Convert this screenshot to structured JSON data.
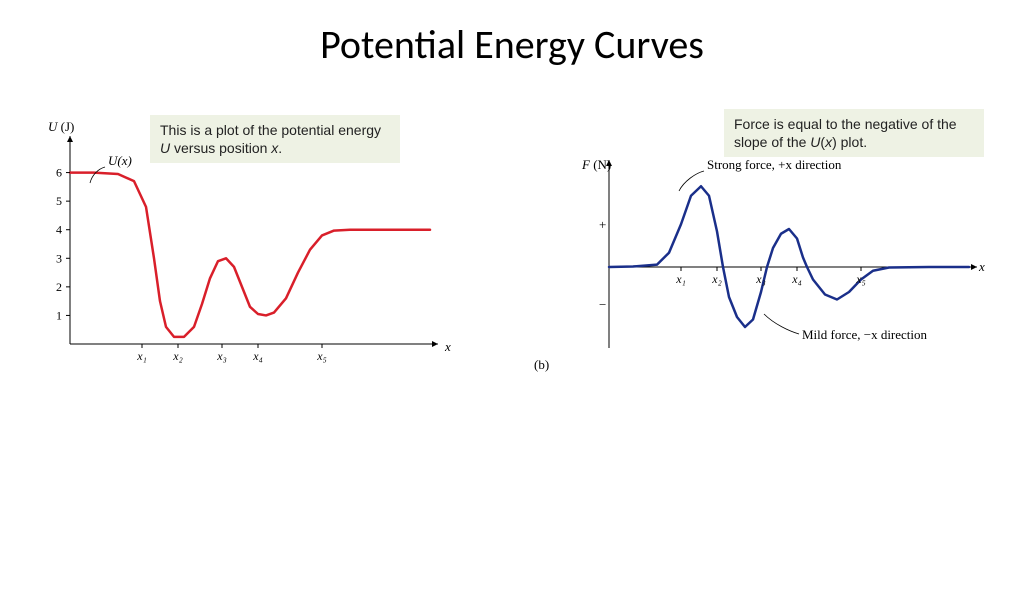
{
  "title": "Potential Energy Curves",
  "left": {
    "caption": "This is a plot of the potential energy U versus position x.",
    "y_label": "U (J)",
    "x_label": "x",
    "curve_label": "U(x)",
    "y_ticks": [
      1,
      2,
      3,
      4,
      5,
      6
    ],
    "x_tick_labels": [
      "x₁",
      "x₂",
      "x₃",
      "x₄",
      "x₅"
    ],
    "ylim": [
      0,
      7
    ],
    "xlim": [
      0,
      9
    ],
    "curve_color": "#d91f2a",
    "curve_width": 2.5,
    "axis_color": "#000000",
    "curve_points": [
      [
        0.0,
        6.0
      ],
      [
        0.6,
        6.0
      ],
      [
        1.2,
        5.95
      ],
      [
        1.6,
        5.7
      ],
      [
        1.9,
        4.8
      ],
      [
        2.1,
        3.0
      ],
      [
        2.25,
        1.5
      ],
      [
        2.4,
        0.6
      ],
      [
        2.6,
        0.25
      ],
      [
        2.85,
        0.25
      ],
      [
        3.1,
        0.6
      ],
      [
        3.3,
        1.4
      ],
      [
        3.5,
        2.3
      ],
      [
        3.7,
        2.9
      ],
      [
        3.9,
        3.0
      ],
      [
        4.1,
        2.7
      ],
      [
        4.3,
        2.0
      ],
      [
        4.5,
        1.3
      ],
      [
        4.7,
        1.05
      ],
      [
        4.9,
        1.0
      ],
      [
        5.1,
        1.1
      ],
      [
        5.4,
        1.6
      ],
      [
        5.7,
        2.5
      ],
      [
        6.0,
        3.3
      ],
      [
        6.3,
        3.8
      ],
      [
        6.6,
        3.97
      ],
      [
        7.0,
        4.0
      ],
      [
        8.0,
        4.0
      ],
      [
        9.0,
        4.0
      ]
    ],
    "x_tick_positions": [
      1.8,
      2.7,
      3.8,
      4.7,
      6.3
    ]
  },
  "right": {
    "caption": "Force is equal to the negative of the slope of the U(x) plot.",
    "y_label": "F (N)",
    "x_label": "x",
    "annot_top": "Strong force, +x direction",
    "annot_bottom": "Mild force, −x direction",
    "panel_label": "(b)",
    "ylim": [
      -3,
      4
    ],
    "xlim": [
      0,
      9
    ],
    "y_plus": "+",
    "y_minus": "−",
    "curve_color": "#1a2f8a",
    "curve_width": 2.5,
    "axis_color": "#000000",
    "x_tick_labels": [
      "x₁",
      "x₂",
      "x₃",
      "x₄",
      "x₅"
    ],
    "x_tick_positions": [
      1.8,
      2.7,
      3.8,
      4.7,
      6.3
    ],
    "curve_points": [
      [
        0.0,
        0.0
      ],
      [
        0.6,
        0.02
      ],
      [
        1.2,
        0.1
      ],
      [
        1.5,
        0.6
      ],
      [
        1.8,
        1.8
      ],
      [
        2.05,
        3.0
      ],
      [
        2.3,
        3.4
      ],
      [
        2.5,
        3.0
      ],
      [
        2.7,
        1.5
      ],
      [
        2.85,
        0.0
      ],
      [
        3.0,
        -1.2
      ],
      [
        3.2,
        -2.0
      ],
      [
        3.4,
        -2.4
      ],
      [
        3.6,
        -2.1
      ],
      [
        3.8,
        -1.0
      ],
      [
        3.95,
        0.0
      ],
      [
        4.1,
        0.8
      ],
      [
        4.3,
        1.4
      ],
      [
        4.5,
        1.6
      ],
      [
        4.7,
        1.2
      ],
      [
        4.85,
        0.4
      ],
      [
        4.95,
        0.0
      ],
      [
        5.1,
        -0.5
      ],
      [
        5.4,
        -1.1
      ],
      [
        5.7,
        -1.3
      ],
      [
        6.0,
        -1.0
      ],
      [
        6.3,
        -0.5
      ],
      [
        6.6,
        -0.15
      ],
      [
        7.0,
        -0.02
      ],
      [
        8.0,
        0.0
      ],
      [
        9.0,
        0.0
      ]
    ]
  },
  "colors": {
    "background": "#ffffff",
    "caption_bg": "#eef2e4"
  }
}
